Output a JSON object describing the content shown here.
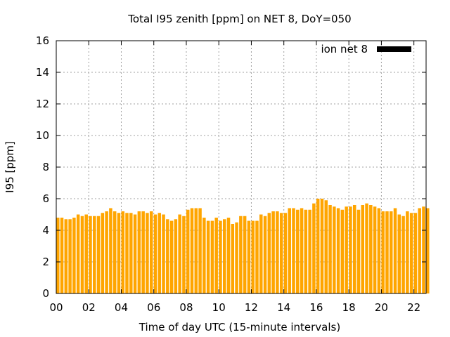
{
  "chart_data": {
    "type": "bar",
    "title": "Total I95 zenith [ppm] on NET 8, DoY=050",
    "xlabel": "Time of day UTC (15-minute intervals)",
    "ylabel": "I95 [ppm]",
    "xlim": [
      0,
      22.75
    ],
    "ylim": [
      0,
      16
    ],
    "yticks": [
      0,
      2,
      4,
      6,
      8,
      10,
      12,
      14,
      16
    ],
    "xticks": [
      0,
      2,
      4,
      6,
      8,
      10,
      12,
      14,
      16,
      18,
      20,
      22
    ],
    "xtick_labels": [
      "00",
      "02",
      "04",
      "06",
      "08",
      "10",
      "12",
      "14",
      "16",
      "18",
      "20",
      "22"
    ],
    "grid": true,
    "legend_position": "top-right",
    "series": [
      {
        "name": "ion net 8",
        "color": "#ffa500",
        "legend_color": "#000000",
        "values": [
          4.8,
          4.8,
          4.7,
          4.7,
          4.8,
          5.0,
          4.9,
          5.0,
          4.9,
          4.9,
          4.9,
          5.1,
          5.2,
          5.4,
          5.2,
          5.1,
          5.2,
          5.1,
          5.1,
          5.0,
          5.2,
          5.2,
          5.1,
          5.2,
          5.0,
          5.1,
          5.0,
          4.7,
          4.6,
          4.7,
          5.0,
          4.9,
          5.3,
          5.4,
          5.4,
          5.4,
          4.8,
          4.6,
          4.6,
          4.8,
          4.6,
          4.7,
          4.8,
          4.4,
          4.5,
          4.9,
          4.9,
          4.6,
          4.6,
          4.6,
          5.0,
          4.9,
          5.1,
          5.2,
          5.2,
          5.1,
          5.1,
          5.4,
          5.4,
          5.3,
          5.4,
          5.3,
          5.3,
          5.7,
          6.0,
          6.0,
          5.9,
          5.6,
          5.5,
          5.4,
          5.3,
          5.5,
          5.5,
          5.6,
          5.3,
          5.6,
          5.7,
          5.6,
          5.5,
          5.4,
          5.2,
          5.2,
          5.2,
          5.4,
          5.0,
          4.9,
          5.2,
          5.1,
          5.1,
          5.4,
          5.5,
          5.4
        ]
      }
    ]
  }
}
